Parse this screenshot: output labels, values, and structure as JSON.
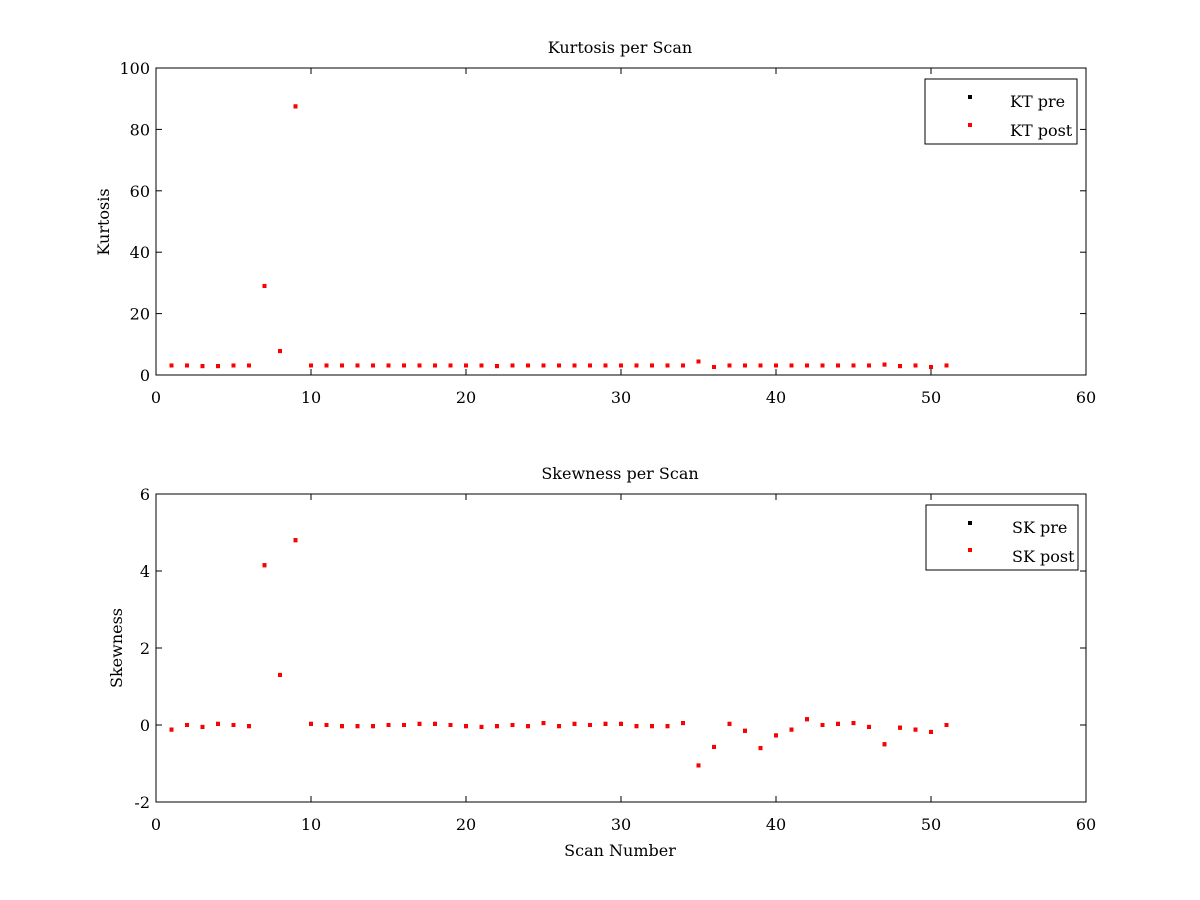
{
  "chart_data": [
    {
      "type": "scatter",
      "title": "Kurtosis per Scan",
      "xlabel": "",
      "ylabel": "Kurtosis",
      "xlim": [
        0,
        60
      ],
      "ylim": [
        0,
        100
      ],
      "xticks": [
        0,
        10,
        20,
        30,
        40,
        50,
        60
      ],
      "yticks": [
        0,
        20,
        40,
        60,
        80,
        100
      ],
      "grid": false,
      "legend_position": "top-right",
      "series": [
        {
          "name": "KT pre",
          "color": "#000000",
          "x": [
            1,
            2,
            3,
            4,
            5,
            6,
            7,
            8,
            9,
            10,
            11,
            12,
            13,
            14,
            15,
            16,
            17,
            18,
            19,
            20,
            21,
            22,
            23,
            24,
            25,
            26,
            27,
            28,
            29,
            30,
            31,
            32,
            33,
            34,
            35,
            36,
            37,
            38,
            39,
            40,
            41,
            42,
            43,
            44,
            45,
            46,
            47,
            48,
            49,
            50,
            51
          ],
          "y": [
            3.1,
            3.1,
            2.9,
            2.9,
            3.1,
            3.1,
            29,
            7.8,
            87.5,
            3.1,
            3.1,
            3.1,
            3.1,
            3.1,
            3.1,
            3.1,
            3.1,
            3.1,
            3.1,
            3.1,
            3.1,
            2.9,
            3.1,
            3.1,
            3.1,
            3.1,
            3.1,
            3.1,
            3.1,
            3.1,
            3.1,
            3.1,
            3.1,
            3.1,
            4.4,
            2.6,
            3.1,
            3.1,
            3.1,
            3.1,
            3.1,
            3.1,
            3.1,
            3.1,
            3.1,
            3.1,
            3.4,
            2.9,
            3.1,
            2.6,
            3.1
          ]
        },
        {
          "name": "KT post",
          "color": "#ff0000",
          "x": [
            1,
            2,
            3,
            4,
            5,
            6,
            7,
            8,
            9,
            10,
            11,
            12,
            13,
            14,
            15,
            16,
            17,
            18,
            19,
            20,
            21,
            22,
            23,
            24,
            25,
            26,
            27,
            28,
            29,
            30,
            31,
            32,
            33,
            34,
            35,
            36,
            37,
            38,
            39,
            40,
            41,
            42,
            43,
            44,
            45,
            46,
            47,
            48,
            49,
            50,
            51
          ],
          "y": [
            3.1,
            3.1,
            2.9,
            2.9,
            3.1,
            3.1,
            29,
            7.8,
            87.5,
            3.1,
            3.1,
            3.1,
            3.1,
            3.1,
            3.1,
            3.1,
            3.1,
            3.1,
            3.1,
            3.1,
            3.1,
            2.9,
            3.1,
            3.1,
            3.1,
            3.1,
            3.1,
            3.1,
            3.1,
            3.1,
            3.1,
            3.1,
            3.1,
            3.1,
            4.4,
            2.6,
            3.1,
            3.1,
            3.1,
            3.1,
            3.1,
            3.1,
            3.1,
            3.1,
            3.1,
            3.1,
            3.4,
            2.9,
            3.1,
            2.6,
            3.1
          ]
        }
      ]
    },
    {
      "type": "scatter",
      "title": "Skewness per Scan",
      "xlabel": "Scan Number",
      "ylabel": "Skewness",
      "xlim": [
        0,
        60
      ],
      "ylim": [
        -2,
        6
      ],
      "xticks": [
        0,
        10,
        20,
        30,
        40,
        50,
        60
      ],
      "yticks": [
        -2,
        0,
        2,
        4,
        6
      ],
      "grid": false,
      "legend_position": "top-right",
      "series": [
        {
          "name": "SK pre",
          "color": "#000000",
          "x": [
            1,
            2,
            3,
            4,
            5,
            6,
            7,
            8,
            9,
            10,
            11,
            12,
            13,
            14,
            15,
            16,
            17,
            18,
            19,
            20,
            21,
            22,
            23,
            24,
            25,
            26,
            27,
            28,
            29,
            30,
            31,
            32,
            33,
            34,
            35,
            36,
            37,
            38,
            39,
            40,
            41,
            42,
            43,
            44,
            45,
            46,
            47,
            48,
            49,
            50,
            51
          ],
          "y": [
            -0.12,
            0.0,
            -0.05,
            0.03,
            0.0,
            -0.03,
            4.15,
            1.3,
            4.8,
            0.03,
            0.0,
            -0.03,
            -0.03,
            -0.03,
            0.0,
            0.0,
            0.03,
            0.03,
            0.0,
            -0.03,
            -0.05,
            -0.03,
            0.0,
            -0.03,
            0.05,
            -0.03,
            0.03,
            0.0,
            0.03,
            0.03,
            -0.03,
            -0.03,
            -0.03,
            0.05,
            -1.05,
            -0.57,
            0.03,
            -0.15,
            -0.6,
            -0.27,
            -0.12,
            0.15,
            0.0,
            0.03,
            0.05,
            -0.05,
            -0.5,
            -0.07,
            -0.12,
            -0.18,
            0.0
          ]
        },
        {
          "name": "SK post",
          "color": "#ff0000",
          "x": [
            1,
            2,
            3,
            4,
            5,
            6,
            7,
            8,
            9,
            10,
            11,
            12,
            13,
            14,
            15,
            16,
            17,
            18,
            19,
            20,
            21,
            22,
            23,
            24,
            25,
            26,
            27,
            28,
            29,
            30,
            31,
            32,
            33,
            34,
            35,
            36,
            37,
            38,
            39,
            40,
            41,
            42,
            43,
            44,
            45,
            46,
            47,
            48,
            49,
            50,
            51
          ],
          "y": [
            -0.12,
            0.0,
            -0.05,
            0.03,
            0.0,
            -0.03,
            4.15,
            1.3,
            4.8,
            0.03,
            0.0,
            -0.03,
            -0.03,
            -0.03,
            0.0,
            0.0,
            0.03,
            0.03,
            0.0,
            -0.03,
            -0.05,
            -0.03,
            0.0,
            -0.03,
            0.05,
            -0.03,
            0.03,
            0.0,
            0.03,
            0.03,
            -0.03,
            -0.03,
            -0.03,
            0.05,
            -1.05,
            -0.57,
            0.03,
            -0.15,
            -0.6,
            -0.27,
            -0.12,
            0.15,
            0.0,
            0.03,
            0.05,
            -0.05,
            -0.5,
            -0.07,
            -0.12,
            -0.18,
            0.0
          ]
        }
      ]
    }
  ]
}
